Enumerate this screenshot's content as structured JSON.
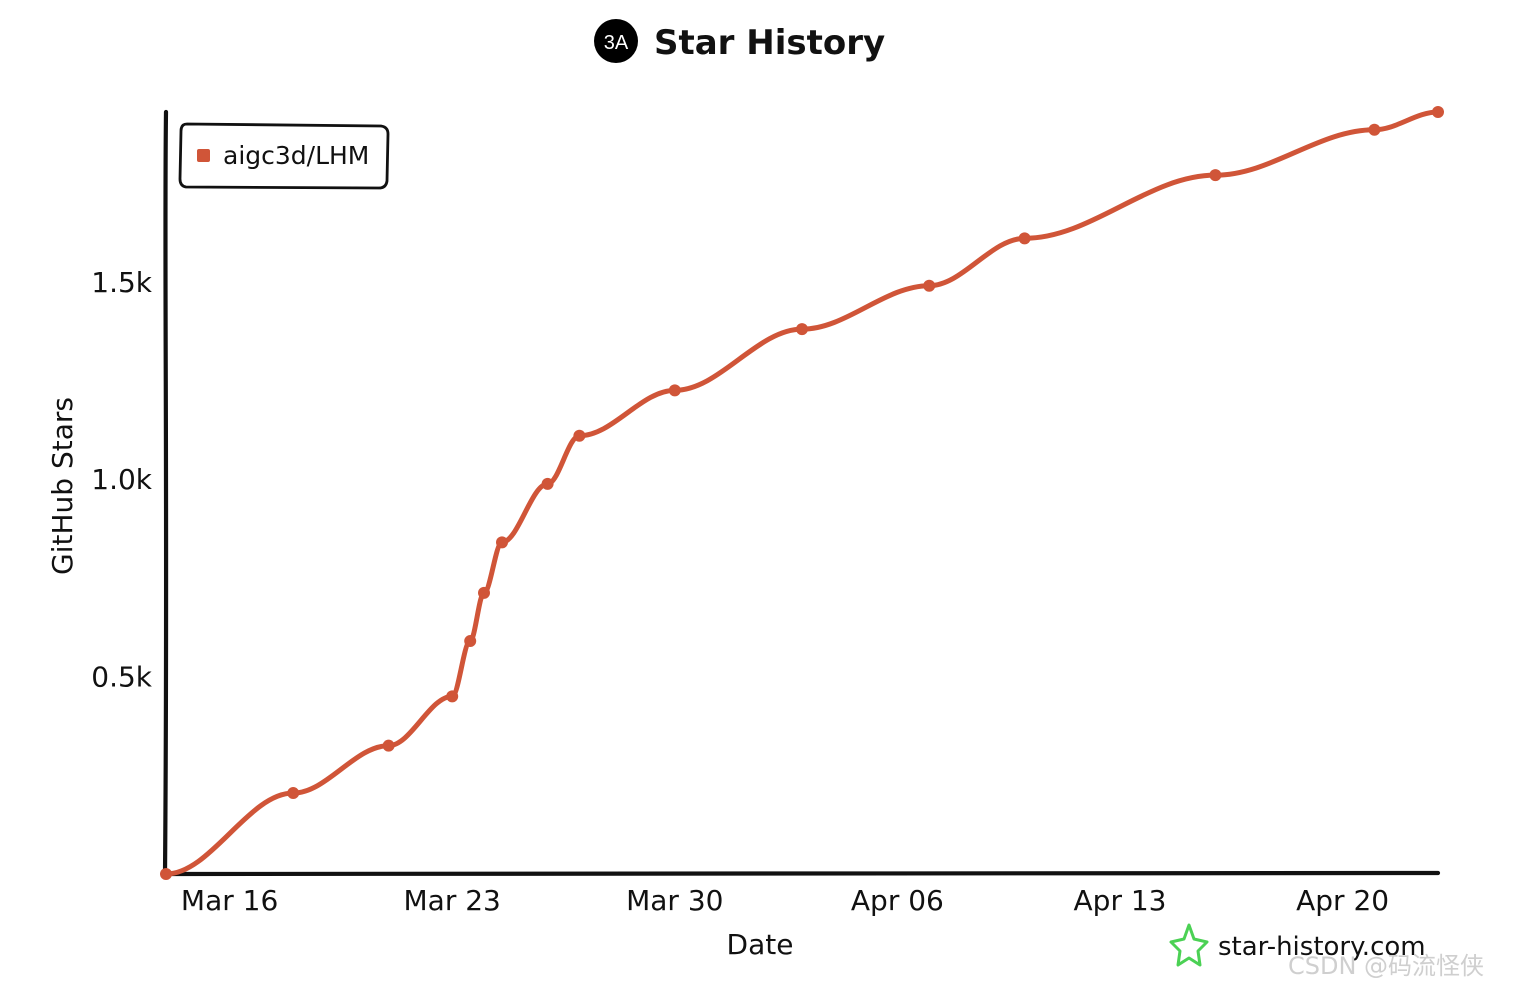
{
  "colors": {
    "series": "#d05538",
    "axis": "#111111",
    "logo_badge": "#000000",
    "watermark_star": "#4bd154"
  },
  "header": {
    "badge": "3A",
    "title": "Star History"
  },
  "footer": {
    "watermark": "star-history.com",
    "source_mark": "CSDN @码流怪侠"
  },
  "chart_data": {
    "type": "line",
    "title": "Star History",
    "xlabel": "Date",
    "ylabel": "GitHub Stars",
    "x_ticks": [
      "Mar 16",
      "Mar 23",
      "Mar 30",
      "Apr 06",
      "Apr 13",
      "Apr 20"
    ],
    "y_ticks": [
      "0.5k",
      "1.0k",
      "1.5k"
    ],
    "ylim": [
      0,
      1930
    ],
    "xlim": [
      "2025-03-14",
      "2025-04-23"
    ],
    "grid": false,
    "legend": "top-left",
    "series": [
      {
        "name": "aigc3d/LHM",
        "color": "#d05538",
        "points": [
          {
            "x": "2025-03-14",
            "y": 0
          },
          {
            "x": "2025-03-18",
            "y": 205
          },
          {
            "x": "2025-03-21",
            "y": 325
          },
          {
            "x": "2025-03-23",
            "y": 450
          },
          {
            "x": "2025-03-23",
            "y": 590
          },
          {
            "x": "2025-03-24",
            "y": 712
          },
          {
            "x": "2025-03-24",
            "y": 840
          },
          {
            "x": "2025-03-26",
            "y": 988
          },
          {
            "x": "2025-03-27",
            "y": 1110
          },
          {
            "x": "2025-03-30",
            "y": 1225
          },
          {
            "x": "2025-04-03",
            "y": 1380
          },
          {
            "x": "2025-04-07",
            "y": 1490
          },
          {
            "x": "2025-04-10",
            "y": 1610
          },
          {
            "x": "2025-04-16",
            "y": 1770
          },
          {
            "x": "2025-04-21",
            "y": 1885
          },
          {
            "x": "2025-04-23",
            "y": 1930
          }
        ]
      }
    ]
  }
}
